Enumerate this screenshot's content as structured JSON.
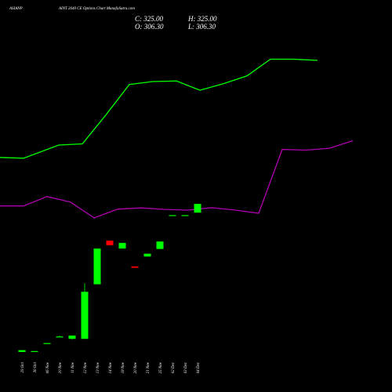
{
  "header": {
    "symbol": "ASIANP",
    "title": "AINT 2640  CE Options  Chart MunafaSutra.com",
    "close_label": "C: 325.00",
    "high_label": "H: 325.00",
    "open_label": "O: 306.30",
    "low_label": "L: 306.30"
  },
  "colors": {
    "background": "#000000",
    "up": "#00ff00",
    "down": "#ff0000",
    "upper_band": "#00ff00",
    "lower_band": "#b000b0",
    "text": "#ffffff"
  },
  "chart_data": {
    "type": "candlestick",
    "title": "AINT 2640  CE Options  Chart MunafaSutra.com",
    "xlabel": "",
    "ylabel": "",
    "ylim": [
      0,
      425
    ],
    "categories": [
      "29 Oct",
      "30 Oct",
      "06 Nov",
      "10 Nov",
      "11 Nov",
      "12 Nov",
      "13 Nov",
      "14 Nov",
      "18 Nov",
      "20 Nov",
      "21 Nov",
      "25 Nov",
      "02 Dec",
      "03 Dec",
      "04 Dec"
    ],
    "candles": [
      {
        "date": "29 Oct",
        "open": 10,
        "high": 14,
        "low": 10,
        "close": 14,
        "color": "up"
      },
      {
        "date": "30 Oct",
        "open": 12,
        "high": 12,
        "low": 11,
        "close": 11,
        "color": "up"
      },
      {
        "date": "06 Nov",
        "open": 29,
        "high": 29,
        "low": 29,
        "close": 29,
        "color": "up"
      },
      {
        "date": "10 Nov",
        "open": 43,
        "high": 45,
        "low": 42,
        "close": 43,
        "color": "up"
      },
      {
        "date": "11 Nov",
        "open": 38,
        "high": 45,
        "low": 37,
        "close": 45,
        "color": "up"
      },
      {
        "date": "12 Nov",
        "open": 38,
        "high": 156,
        "low": 38,
        "close": 138,
        "color": "up"
      },
      {
        "date": "13 Nov",
        "open": 154,
        "high": 230,
        "low": 154,
        "close": 230,
        "color": "up"
      },
      {
        "date": "14 Nov",
        "open": 247,
        "high": 247,
        "low": 237,
        "close": 237,
        "color": "down"
      },
      {
        "date": "18 Nov",
        "open": 230,
        "high": 242,
        "low": 230,
        "close": 242,
        "color": "up"
      },
      {
        "date": "20 Nov",
        "open": 192,
        "high": 192,
        "low": 189,
        "close": 189,
        "color": "down"
      },
      {
        "date": "21 Nov",
        "open": 213,
        "high": 219,
        "low": 213,
        "close": 219,
        "color": "up"
      },
      {
        "date": "25 Nov",
        "open": 229,
        "high": 245,
        "low": 229,
        "close": 245,
        "color": "up"
      },
      {
        "date": "02 Dec",
        "open": 301,
        "high": 301,
        "low": 301,
        "close": 301,
        "color": "up"
      },
      {
        "date": "03 Dec",
        "open": 301,
        "high": 301,
        "low": 301,
        "close": 301,
        "color": "up"
      },
      {
        "date": "04 Dec",
        "open": 306.3,
        "high": 325,
        "low": 306.3,
        "close": 325,
        "color": "up"
      }
    ],
    "upper_band": {
      "color": "#00ff00",
      "values": [
        [
          0,
          635
        ],
        [
          2,
          632
        ],
        [
          5,
          686
        ],
        [
          7,
          691
        ],
        [
          9,
          810
        ],
        [
          11,
          936
        ],
        [
          13,
          948
        ],
        [
          15,
          950
        ],
        [
          17,
          912
        ],
        [
          19,
          939
        ],
        [
          21,
          971
        ],
        [
          23,
          1040
        ],
        [
          25,
          1040
        ],
        [
          27,
          1035
        ]
      ]
    },
    "lower_band": {
      "color": "#b000b0",
      "values": [
        [
          0,
          435
        ],
        [
          2,
          435
        ],
        [
          4,
          474
        ],
        [
          6,
          451
        ],
        [
          8,
          386
        ],
        [
          10,
          422
        ],
        [
          12,
          427
        ],
        [
          14,
          421
        ],
        [
          16,
          418
        ],
        [
          18,
          428
        ],
        [
          20,
          418
        ],
        [
          22,
          405
        ],
        [
          24,
          668
        ],
        [
          26,
          665
        ],
        [
          28,
          673
        ],
        [
          30,
          704
        ]
      ]
    },
    "grid": false,
    "legend": "none"
  }
}
